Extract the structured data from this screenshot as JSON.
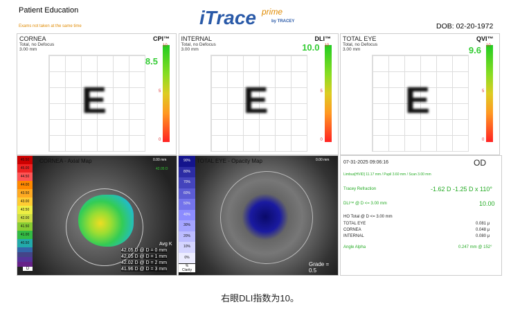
{
  "header": {
    "title": "Patient Education",
    "note": "Exams not taken at the same time",
    "logo": "iTrace",
    "logo_sup": "prime",
    "logo_by": "by TRACEY",
    "dob": "DOB: 02-20-1972"
  },
  "panels": [
    {
      "title": "CORNEA",
      "line1": "Total, no Defocus",
      "line2": "3.00 mm",
      "metric": "CPI™",
      "value": "8.5",
      "scale": [
        "10",
        "5",
        "0"
      ]
    },
    {
      "title": "INTERNAL",
      "line1": "Total, no Defocus",
      "line2": "3.00 mm",
      "metric": "DLI™",
      "value": "10.0",
      "scale": [
        "10",
        "5",
        "0"
      ]
    },
    {
      "title": "TOTAL EYE",
      "line1": "Total, no Defocus",
      "line2": "3.00 mm",
      "metric": "QVI™",
      "value": "9.6",
      "scale": [
        "10",
        "5",
        "0"
      ]
    }
  ],
  "axial_map": {
    "title": "CORNEA - Axial Map",
    "scale": [
      "45.50",
      "45.00",
      "44.50",
      "44.00",
      "43.50",
      "43.00",
      "42.50",
      "42.00",
      "41.50",
      "41.00",
      "40.50"
    ],
    "unit": "D",
    "radius": "0.00 mm",
    "center": "42.05 D",
    "avg_title": "Avg K",
    "avg": [
      "42.05 D @ D = 0 mm",
      "42.05 D @ D = 1 mm",
      "42.02 D @ D = 2 mm",
      "41.96 D @ D = 3 mm"
    ]
  },
  "opacity_map": {
    "title": "TOTAL EYE - Opacity Map",
    "scale": [
      "90%",
      "80%",
      "70%",
      "60%",
      "50%",
      "40%",
      "30%",
      "20%",
      "10%",
      "0%"
    ],
    "unit": "%",
    "unit2": "Clarity",
    "radius": "0.00 mm",
    "grade": "Grade = 0.5"
  },
  "summary": {
    "datetime": "07-31-2025  09:06:16",
    "eye": "OD",
    "sizes": "Limbus[HVID] 11.17 mm  /  Pupil 3.60 mm  /  Scan 3.00 mm",
    "refraction_label": "Tracey Refraction",
    "refraction": "-1.62 D -1.25 D x 110°",
    "dli_label": "DLI™ @ D <= 3.00 mm",
    "dli": "10.00",
    "ho_label": "HO Total @ D <= 3.00 mm",
    "ho": [
      {
        "name": "TOTAL EYE",
        "value": "0.081 µ"
      },
      {
        "name": "CORNEA",
        "value": "0.048 µ"
      },
      {
        "name": "INTERNAL",
        "value": "0.080 µ"
      }
    ],
    "alpha_label": "Angle Alpha",
    "alpha": "0.247 mm @ 152°"
  },
  "caption": "右眼DLI指数为10。"
}
